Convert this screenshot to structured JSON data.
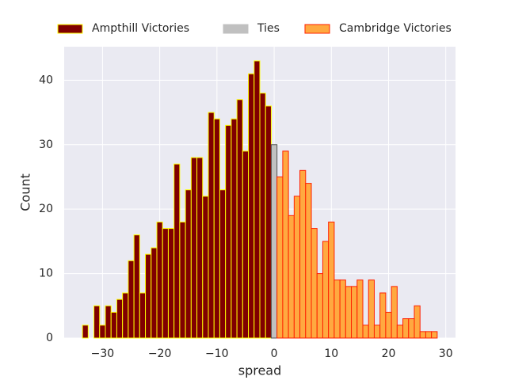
{
  "chart_data": {
    "type": "histogram",
    "x_label": "spread",
    "y_label": "Count",
    "xlim": [
      -36.7,
      31.7
    ],
    "ylim": [
      0,
      45.2
    ],
    "xticks": [
      {
        "value": -30,
        "label": "−30"
      },
      {
        "value": -20,
        "label": "−20"
      },
      {
        "value": -10,
        "label": "−10"
      },
      0,
      10,
      20,
      30
    ],
    "yticks": [
      0,
      10,
      20,
      30,
      40
    ],
    "grid": true,
    "legend": "top",
    "series": [
      {
        "name": "Ampthill Victories",
        "color": "#800000",
        "edgecolor": "#ffff00",
        "bins": [
          -33.5,
          -32.5,
          -31.5,
          -30.5,
          -29.5,
          -28.5,
          -27.5,
          -26.5,
          -25.5,
          -24.5,
          -23.5,
          -22.5,
          -21.5,
          -20.5,
          -19.5,
          -18.5,
          -17.5,
          -16.5,
          -15.5,
          -14.5,
          -13.5,
          -12.5,
          -11.5,
          -10.5,
          -9.5,
          -8.5,
          -7.5,
          -6.5,
          -5.5,
          -4.5,
          -3.5,
          -2.5,
          -1.5,
          -0.5
        ],
        "values": [
          2,
          0,
          5,
          2,
          5,
          4,
          6,
          7,
          12,
          16,
          7,
          13,
          14,
          18,
          17,
          17,
          27,
          18,
          23,
          28,
          28,
          22,
          35,
          34,
          23,
          33,
          34,
          37,
          29,
          41,
          43,
          38,
          36
        ]
      },
      {
        "name": "Ties",
        "color": "#c0c0c0",
        "edgecolor": "#555555",
        "bins": [
          -0.5,
          0.5
        ],
        "values": [
          30
        ]
      },
      {
        "name": "Cambridge Victories",
        "color": "#ffa940",
        "edgecolor": "#ff2000",
        "bins": [
          0.5,
          1.5,
          2.5,
          3.5,
          4.5,
          5.5,
          6.5,
          7.5,
          8.5,
          9.5,
          10.5,
          11.5,
          12.5,
          13.5,
          14.5,
          15.5,
          16.5,
          17.5,
          18.5,
          19.5,
          20.5,
          21.5,
          22.5,
          23.5,
          24.5,
          25.5,
          26.5,
          27.5,
          28.5
        ],
        "values": [
          25,
          29,
          19,
          22,
          26,
          24,
          17,
          10,
          15,
          18,
          9,
          9,
          8,
          8,
          9,
          2,
          9,
          2,
          7,
          4,
          8,
          2,
          3,
          3,
          5,
          1,
          1,
          1
        ]
      }
    ]
  }
}
